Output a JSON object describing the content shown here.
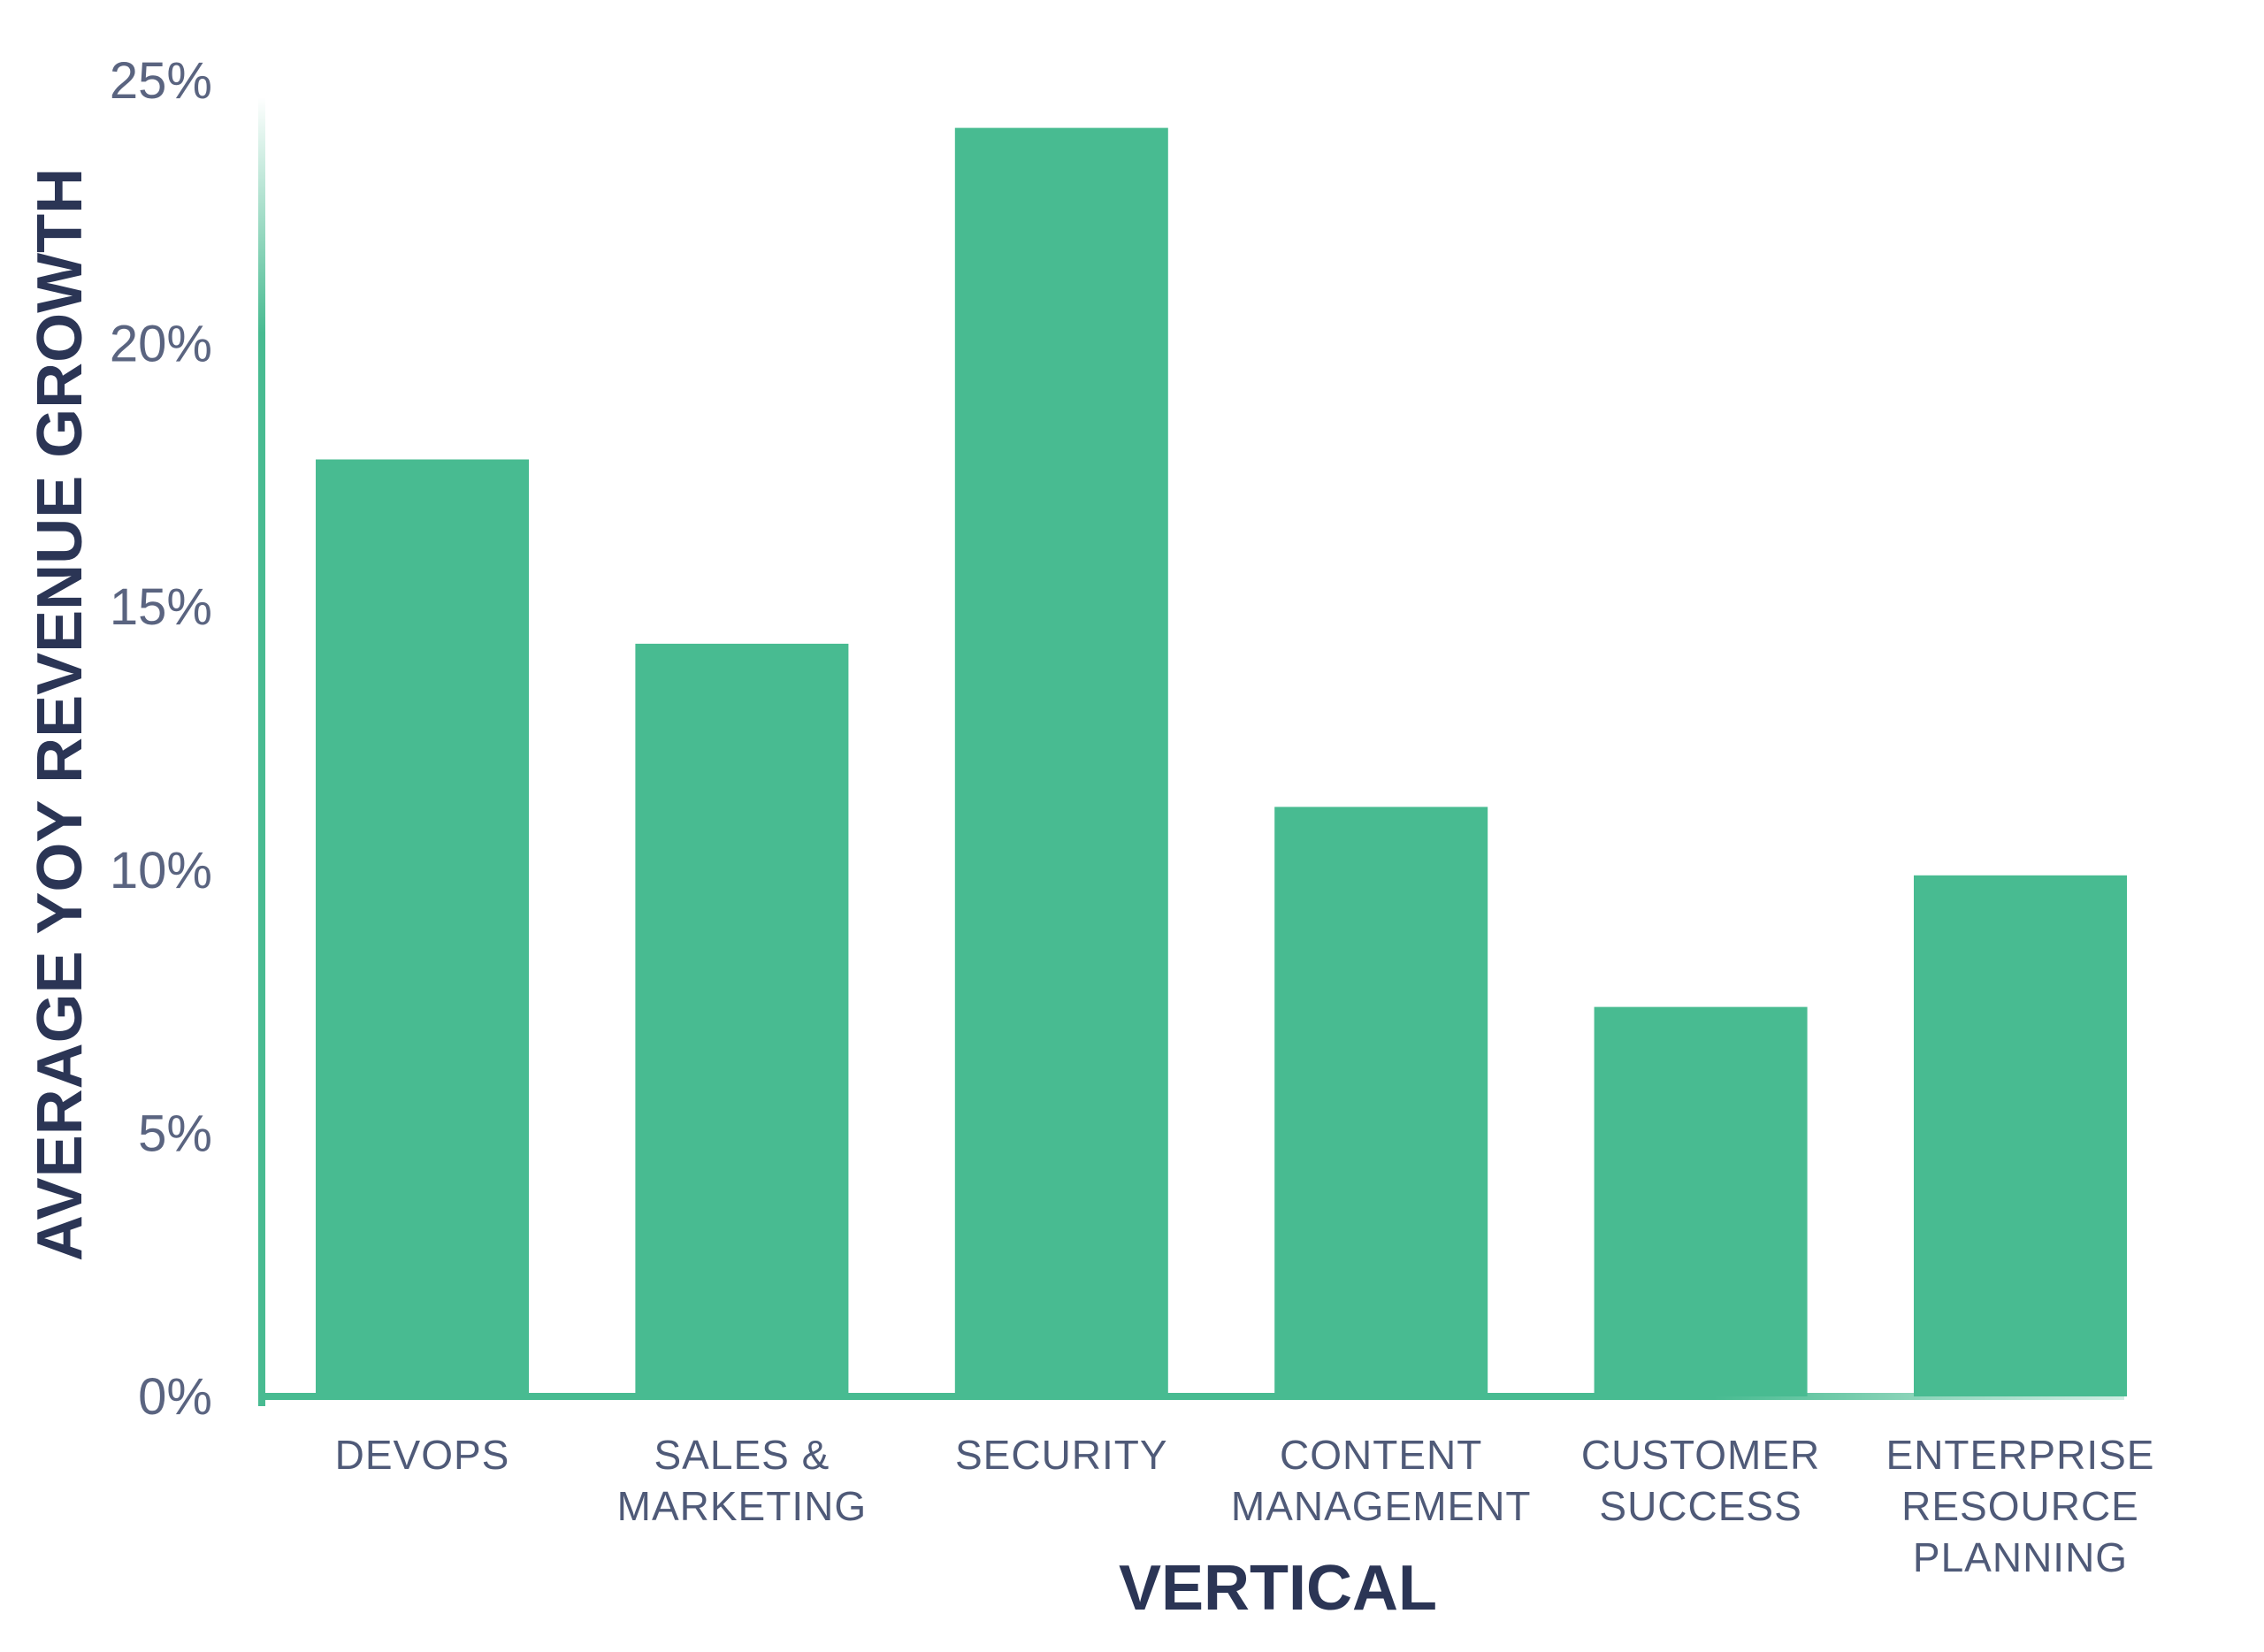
{
  "chart_data": {
    "type": "bar",
    "categories": [
      [
        "DEVOPS"
      ],
      [
        "SALES &",
        "MARKETING"
      ],
      [
        "SECURITY"
      ],
      [
        "CONTENT",
        "MANAGEMENT"
      ],
      [
        "CUSTOMER",
        "SUCCESS"
      ],
      [
        "ENTERPRISE",
        "RESOURCE",
        "PLANNING"
      ]
    ],
    "values": [
      17.8,
      14.3,
      24.1,
      11.2,
      7.4,
      9.9
    ],
    "ylim": [
      0,
      25
    ],
    "yticks": [
      0,
      5,
      10,
      15,
      20,
      25
    ],
    "ytick_labels": [
      "0%",
      "5%",
      "10%",
      "15%",
      "20%",
      "25%"
    ],
    "xlabel": "VERTICAL",
    "ylabel": "AVERAGE YOY REVENUE GROWTH",
    "grid": false,
    "bar_color": "#48bb91",
    "axis_color": "#48bb91",
    "text_color": "#2b3555",
    "tick_color": "#5a6480"
  }
}
